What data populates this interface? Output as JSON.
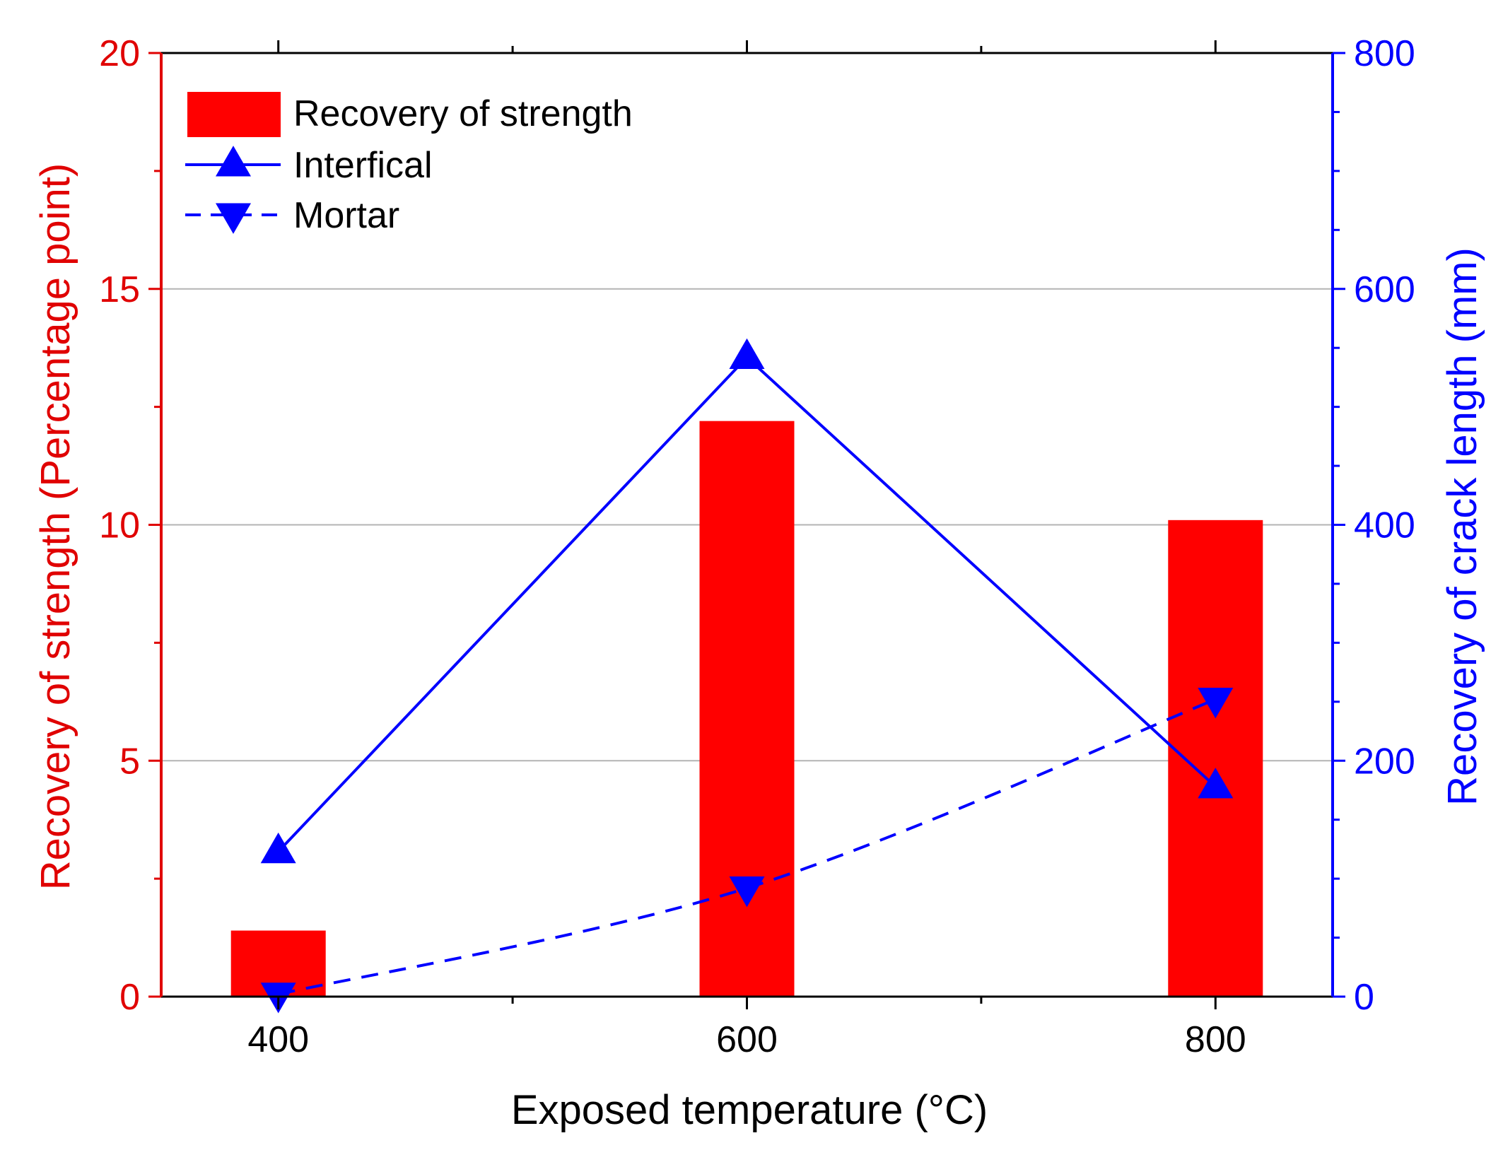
{
  "chart_data": {
    "type": "bar+line",
    "title": "",
    "xlabel": "Exposed temperature (°C)",
    "ylabel_left": "Recovery of strength (Percentage point)",
    "ylabel_right": "Recovery of crack length (mm)",
    "x_ticks": [
      "400",
      "600",
      "800"
    ],
    "x_values": [
      400,
      600,
      800
    ],
    "xlim": [
      350,
      850
    ],
    "ylim_left": [
      0,
      20
    ],
    "y_ticks_left": [
      "0",
      "5",
      "10",
      "15",
      "20"
    ],
    "ylim_right": [
      0,
      800
    ],
    "y_ticks_right": [
      "0",
      "200",
      "400",
      "600",
      "800"
    ],
    "grid": "horizontal",
    "legend_position": "top-left",
    "bars": {
      "name": "Recovery of strength",
      "axis": "left",
      "values": [
        1.4,
        12.2,
        10.1
      ]
    },
    "series": [
      {
        "name": "Interfical",
        "axis": "right",
        "marker": "triangle-up",
        "line": "solid",
        "values": [
          123,
          542,
          178
        ]
      },
      {
        "name": "Mortar",
        "axis": "right",
        "marker": "triangle-down",
        "line": "dashed",
        "values": [
          2,
          92,
          252
        ]
      }
    ],
    "colors": {
      "bar": "#ff0000",
      "left_axis": "#e00000",
      "right_axis": "#0000ff",
      "series": "#0000ff",
      "grid": "#b4b4b4",
      "frame": "#000000"
    }
  }
}
